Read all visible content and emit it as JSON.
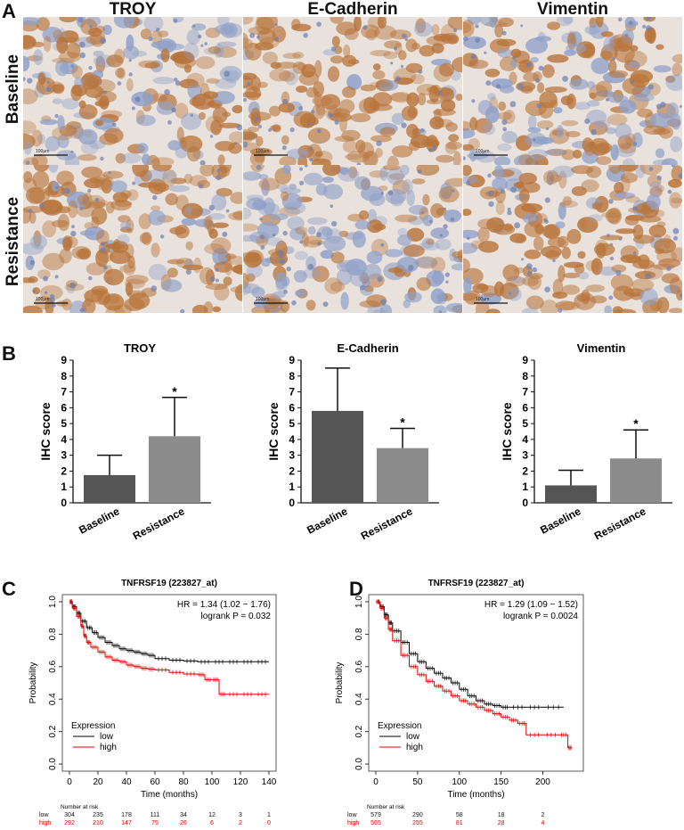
{
  "panel_A": {
    "letter": "A",
    "columns": [
      "TROY",
      "E-Cadherin",
      "Vimentin"
    ],
    "rows": [
      "Baseline",
      "Resistance"
    ],
    "scale_bar_labels": [
      "100μm",
      "100μm",
      "100μm",
      "100μm",
      "100μm",
      "100μm"
    ],
    "colors": {
      "brown": "#b8743a",
      "blue": "#8fa0c8",
      "background": "#e9e2dc"
    }
  },
  "panel_B": {
    "letter": "B"
  },
  "panel_C": {
    "letter": "C"
  },
  "panel_D": {
    "letter": "D"
  },
  "chart_data": [
    {
      "type": "bar",
      "title": "TROY",
      "ylabel": "IHC score",
      "categories": [
        "Baseline",
        "Resistance"
      ],
      "values": [
        1.75,
        4.2
      ],
      "errors": [
        1.25,
        2.45
      ],
      "significance": [
        "",
        "*"
      ],
      "ylim": [
        0,
        9
      ],
      "yticks": [
        "0",
        "1",
        "2",
        "3",
        "4",
        "5",
        "6",
        "7",
        "8",
        "9"
      ],
      "colors": [
        "#555555",
        "#8c8c8c"
      ]
    },
    {
      "type": "bar",
      "title": "E-Cadherin",
      "ylabel": "IHC score",
      "categories": [
        "Baseline",
        "Resistance"
      ],
      "values": [
        5.8,
        3.45
      ],
      "errors": [
        2.7,
        1.25
      ],
      "significance": [
        "",
        "*"
      ],
      "ylim": [
        0,
        9
      ],
      "yticks": [
        "0",
        "1",
        "2",
        "3",
        "4",
        "5",
        "6",
        "7",
        "8",
        "9"
      ],
      "colors": [
        "#555555",
        "#8c8c8c"
      ]
    },
    {
      "type": "bar",
      "title": "Vimentin",
      "ylabel": "IHC score",
      "categories": [
        "Baseline",
        "Resistance"
      ],
      "values": [
        1.1,
        2.8
      ],
      "errors": [
        0.95,
        1.8
      ],
      "significance": [
        "",
        "*"
      ],
      "ylim": [
        0,
        9
      ],
      "yticks": [
        "0",
        "1",
        "2",
        "3",
        "4",
        "5",
        "6",
        "7",
        "8",
        "9"
      ],
      "colors": [
        "#555555",
        "#8c8c8c"
      ]
    },
    {
      "type": "line",
      "title": "TNFRSF19 (223827_at)",
      "xlabel": "Time (months)",
      "ylabel": "Probability",
      "xlim": [
        0,
        140
      ],
      "xticks": [
        "0",
        "20",
        "40",
        "60",
        "80",
        "100",
        "120",
        "140"
      ],
      "ylim": [
        0,
        1
      ],
      "yticks": [
        "0.0",
        "0.2",
        "0.4",
        "0.6",
        "0.8",
        "1.0"
      ],
      "hr_text": "HR = 1.34 (1.02 − 1.76)",
      "p_text": "logrank P = 0.032",
      "legend_title": "Expression",
      "series": [
        {
          "name": "low",
          "color": "#000000",
          "x": [
            0,
            2,
            5,
            8,
            12,
            16,
            20,
            25,
            30,
            35,
            40,
            45,
            50,
            55,
            60,
            70,
            80,
            90,
            100,
            110,
            120,
            130,
            140
          ],
          "y": [
            1.0,
            0.97,
            0.93,
            0.88,
            0.84,
            0.81,
            0.78,
            0.75,
            0.73,
            0.71,
            0.7,
            0.69,
            0.68,
            0.67,
            0.65,
            0.64,
            0.635,
            0.63,
            0.63,
            0.63,
            0.63,
            0.63,
            0.63
          ]
        },
        {
          "name": "high",
          "color": "#e00000",
          "x": [
            0,
            2,
            5,
            8,
            10,
            12,
            15,
            20,
            25,
            30,
            35,
            40,
            45,
            50,
            55,
            60,
            70,
            80,
            90,
            95,
            100,
            105,
            110,
            120,
            130,
            140
          ],
          "y": [
            1.0,
            0.96,
            0.91,
            0.85,
            0.79,
            0.75,
            0.72,
            0.69,
            0.66,
            0.64,
            0.63,
            0.61,
            0.6,
            0.59,
            0.585,
            0.58,
            0.565,
            0.555,
            0.55,
            0.52,
            0.52,
            0.43,
            0.43,
            0.43,
            0.43,
            0.43
          ]
        }
      ],
      "risk_table": {
        "header": "Number at risk",
        "rows": [
          {
            "label": "low",
            "values": [
              "304",
              "235",
              "178",
              "111",
              "34",
              "12",
              "3",
              "1"
            ]
          },
          {
            "label": "high",
            "values": [
              "292",
              "210",
              "147",
              "75",
              "26",
              "6",
              "2",
              "0"
            ]
          }
        ]
      }
    },
    {
      "type": "line",
      "title": "TNFRSF19 (223827_at)",
      "xlabel": "Time (months)",
      "ylabel": "Probability",
      "xlim": [
        0,
        240
      ],
      "xticks": [
        "0",
        "50",
        "100",
        "150",
        "200"
      ],
      "ylim": [
        0,
        1
      ],
      "yticks": [
        "0.0",
        "0.2",
        "0.4",
        "0.6",
        "0.8",
        "1.0"
      ],
      "hr_text": "HR = 1.29 (1.09 − 1.52)",
      "p_text": "logrank P = 0.0024",
      "legend_title": "Expression",
      "series": [
        {
          "name": "low",
          "color": "#000000",
          "x": [
            0,
            5,
            10,
            15,
            20,
            30,
            40,
            50,
            60,
            70,
            80,
            90,
            100,
            110,
            120,
            130,
            140,
            150,
            160,
            180,
            200,
            225
          ],
          "y": [
            1.0,
            0.97,
            0.92,
            0.87,
            0.82,
            0.75,
            0.68,
            0.63,
            0.59,
            0.56,
            0.53,
            0.5,
            0.46,
            0.42,
            0.39,
            0.37,
            0.36,
            0.35,
            0.35,
            0.35,
            0.35,
            0.35
          ]
        },
        {
          "name": "high",
          "color": "#e00000",
          "x": [
            0,
            5,
            10,
            15,
            20,
            30,
            40,
            50,
            60,
            70,
            80,
            90,
            100,
            110,
            120,
            130,
            140,
            150,
            160,
            170,
            180,
            200,
            220,
            230,
            235
          ],
          "y": [
            1.0,
            0.96,
            0.9,
            0.83,
            0.76,
            0.67,
            0.6,
            0.55,
            0.51,
            0.48,
            0.45,
            0.42,
            0.39,
            0.37,
            0.35,
            0.33,
            0.31,
            0.29,
            0.27,
            0.25,
            0.18,
            0.18,
            0.18,
            0.1,
            0.1
          ]
        }
      ],
      "risk_table": {
        "header": "Number at risk",
        "rows": [
          {
            "label": "low",
            "values": [
              "579",
              "290",
              "58",
              "18",
              "2"
            ]
          },
          {
            "label": "high",
            "values": [
              "565",
              "255",
              "81",
              "28",
              "4"
            ]
          }
        ]
      }
    }
  ]
}
